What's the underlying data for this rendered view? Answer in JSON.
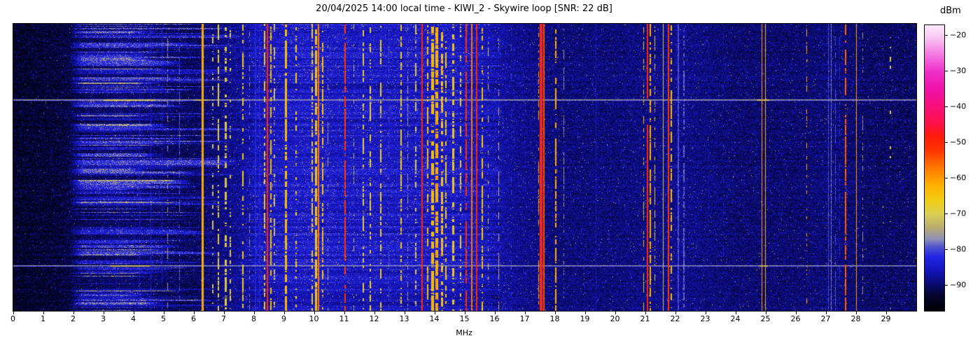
{
  "chart_data": {
    "type": "heatmap",
    "title": "20/04/2025 14:00 local time - KIWI_2 - Skywire loop [SNR: 22 dB]",
    "subtitle": "",
    "xlabel": "MHz",
    "ylabel": "",
    "y_meaning": "time (waterfall rows, unlabeled)",
    "x_range_mhz": [
      0,
      30
    ],
    "x_ticks": [
      0,
      1,
      2,
      3,
      4,
      5,
      6,
      7,
      8,
      9,
      10,
      11,
      12,
      13,
      14,
      15,
      16,
      17,
      18,
      19,
      20,
      21,
      22,
      23,
      24,
      25,
      26,
      27,
      28,
      29
    ],
    "grid": false,
    "legend": "none",
    "colorbar": {
      "label": "dBm",
      "ticks": [
        -20,
        -30,
        -40,
        -50,
        -60,
        -70,
        -80,
        -90
      ],
      "range_dbm": [
        -97,
        -17
      ],
      "position": "right",
      "colormap_stops": [
        [
          -97,
          "#000004"
        ],
        [
          -93,
          "#05052c"
        ],
        [
          -90,
          "#0a0a6a"
        ],
        [
          -86,
          "#1414b8"
        ],
        [
          -82,
          "#2323e6"
        ],
        [
          -79,
          "#5356cd"
        ],
        [
          -77,
          "#8f8fba"
        ],
        [
          -74,
          "#b7aa74"
        ],
        [
          -70,
          "#dccf55"
        ],
        [
          -66,
          "#f1ce12"
        ],
        [
          -62,
          "#ffb300"
        ],
        [
          -57,
          "#ff7a00"
        ],
        [
          -52,
          "#ff3400"
        ],
        [
          -48,
          "#ff1a0e"
        ],
        [
          -44,
          "#fc1150"
        ],
        [
          -40,
          "#f90f79"
        ],
        [
          -35,
          "#f112a9"
        ],
        [
          -30,
          "#ee2fca"
        ],
        [
          -25,
          "#f57be2"
        ],
        [
          -20,
          "#f9cdf3"
        ],
        [
          -17,
          "#fce9fb"
        ]
      ]
    },
    "noise_floor_profile_dbm": [
      [
        0,
        -96
      ],
      [
        1.5,
        -95
      ],
      [
        2.2,
        -93.5
      ],
      [
        3.5,
        -92
      ],
      [
        4.5,
        -92.5
      ],
      [
        6,
        -93
      ],
      [
        7.5,
        -90
      ],
      [
        8.2,
        -87.5
      ],
      [
        9.7,
        -86.5
      ],
      [
        11,
        -87
      ],
      [
        13,
        -87
      ],
      [
        14.5,
        -87
      ],
      [
        15.8,
        -88
      ],
      [
        16.5,
        -90
      ],
      [
        18,
        -91.5
      ],
      [
        20,
        -91.5
      ],
      [
        22,
        -90.5
      ],
      [
        24,
        -92
      ],
      [
        26,
        -92
      ],
      [
        27.3,
        -91.5
      ],
      [
        28.5,
        -92.5
      ],
      [
        30,
        -92.5
      ]
    ],
    "noise_texture": {
      "speckle_db": 7,
      "spike_prob": 0.018,
      "spike_db_max": 10,
      "row_mod_db_mid": 4.5,
      "row_mod_db_hi": 1.6
    },
    "left_haze": {
      "comment": "horizontal blue streak rows between 1.85 and ~7.7 MHz",
      "f_start": 1.85,
      "row_prob": 0.5,
      "amp_db_range": [
        3,
        11
      ],
      "cutoff_mhz_range": [
        4.3,
        7.8
      ],
      "tan_row_prob": 0.05,
      "tan_amp_db_range": [
        12,
        17
      ],
      "tan_cutoff_mhz_range": [
        4.6,
        6.2
      ],
      "persist_prob": 0.45
    },
    "row_streaks": [
      {
        "y_frac": 0.08,
        "level_dbm": -85,
        "f_range": [
          1.9,
          13.0
        ],
        "hot_segments": []
      },
      {
        "y_frac": 0.263,
        "level_dbm": -76,
        "f_range": [
          0,
          30
        ],
        "hot_segments": [
          [
            3.0,
            4.7,
            -69
          ],
          [
            6.0,
            6.5,
            -72
          ],
          [
            13.2,
            14.2,
            -73
          ],
          [
            24.7,
            25.1,
            -70
          ]
        ]
      },
      {
        "y_frac": 0.841,
        "level_dbm": -77,
        "f_range": [
          0,
          30
        ],
        "hot_segments": [
          [
            3.2,
            4.5,
            -71
          ],
          [
            24.8,
            25.05,
            -72
          ]
        ]
      }
    ],
    "signals": [
      {
        "freq": 4.2,
        "level": -85,
        "style": "solid",
        "width": 1
      },
      {
        "freq": 4.58,
        "level": -84,
        "style": "solid",
        "width": 1
      },
      {
        "freq": 4.95,
        "level": -84,
        "style": "dash",
        "cover": 0.7,
        "width": 1
      },
      {
        "freq": 5.12,
        "level": -76,
        "style": "dash",
        "cover": 0.3,
        "width": 1
      },
      {
        "freq": 5.53,
        "level": -79,
        "style": "dash",
        "cover": 0.5,
        "width": 1
      },
      {
        "freq": 6.3,
        "level": -59,
        "style": "solid",
        "width": 3
      },
      {
        "freq": 6.62,
        "level": -71,
        "style": "dash",
        "cover": 0.25,
        "width": 2
      },
      {
        "freq": 6.81,
        "level": -68,
        "style": "dash",
        "cover": 0.5,
        "width": 2
      },
      {
        "freq": 7.05,
        "level": -66,
        "style": "dash",
        "cover": 0.6,
        "width": 3
      },
      {
        "freq": 7.2,
        "level": -70,
        "style": "dash",
        "cover": 0.3,
        "width": 2
      },
      {
        "freq": 7.62,
        "level": -67,
        "style": "dash",
        "cover": 0.5,
        "width": 2
      },
      {
        "freq": 7.85,
        "level": -76,
        "style": "dash",
        "cover": 0.3,
        "width": 1
      },
      {
        "freq": 8.05,
        "level": -83,
        "style": "solid",
        "width": 2
      },
      {
        "freq": 8.18,
        "level": -84,
        "style": "solid",
        "width": 2
      },
      {
        "freq": 8.35,
        "level": -66,
        "style": "dash",
        "cover": 0.55,
        "width": 2
      },
      {
        "freq": 8.44,
        "level": -50,
        "style": "solid",
        "width": 2
      },
      {
        "freq": 8.55,
        "level": -63,
        "style": "dash",
        "cover": 0.7,
        "width": 2
      },
      {
        "freq": 8.67,
        "level": -72,
        "style": "dash",
        "cover": 0.3,
        "width": 2
      },
      {
        "freq": 9.06,
        "level": -61,
        "style": "dash",
        "cover": 0.75,
        "width": 3
      },
      {
        "freq": 9.4,
        "level": -67,
        "style": "dash",
        "cover": 0.35,
        "width": 2
      },
      {
        "freq": 9.93,
        "level": -67,
        "style": "dash",
        "cover": 0.5,
        "width": 2
      },
      {
        "freq": 10.05,
        "level": -63,
        "style": "dash",
        "cover": 0.8,
        "width": 3
      },
      {
        "freq": 10.15,
        "level": -57,
        "style": "solid",
        "width": 2
      },
      {
        "freq": 10.27,
        "level": -65,
        "style": "dash",
        "cover": 0.6,
        "width": 2
      },
      {
        "freq": 10.45,
        "level": -75,
        "style": "dash",
        "cover": 0.3,
        "width": 1
      },
      {
        "freq": 11.03,
        "level": -52,
        "style": "dash",
        "cover": 0.85,
        "width": 2
      },
      {
        "freq": 11.32,
        "level": -72,
        "style": "dash",
        "cover": 0.3,
        "width": 1
      },
      {
        "freq": 11.62,
        "level": -70,
        "style": "dash",
        "cover": 0.45,
        "width": 2
      },
      {
        "freq": 11.85,
        "level": -68,
        "style": "dash",
        "cover": 0.4,
        "width": 2
      },
      {
        "freq": 12.2,
        "level": -67,
        "style": "dash",
        "cover": 0.4,
        "width": 2
      },
      {
        "freq": 12.48,
        "level": -80,
        "style": "dash",
        "cover": 0.4,
        "width": 1
      },
      {
        "freq": 12.88,
        "level": -66,
        "style": "dash",
        "cover": 0.55,
        "width": 2
      },
      {
        "freq": 13.1,
        "level": -75,
        "style": "dash",
        "cover": 0.4,
        "width": 1
      },
      {
        "freq": 13.37,
        "level": -70,
        "style": "dash",
        "cover": 0.4,
        "width": 2
      },
      {
        "freq": 13.58,
        "level": -50,
        "style": "solid",
        "width": 2
      },
      {
        "freq": 13.76,
        "level": -64,
        "style": "dash",
        "cover": 0.6,
        "width": 2
      },
      {
        "freq": 13.92,
        "level": -62,
        "style": "dash",
        "cover": 0.7,
        "width": 4
      },
      {
        "freq": 14.08,
        "level": -61,
        "style": "dash",
        "cover": 0.75,
        "width": 4,
        "speck": true
      },
      {
        "freq": 14.24,
        "level": -63,
        "style": "dash",
        "cover": 0.6,
        "width": 3,
        "speck": true
      },
      {
        "freq": 14.38,
        "level": -66,
        "style": "dash",
        "cover": 0.5,
        "width": 2
      },
      {
        "freq": 14.62,
        "level": -64,
        "style": "dash",
        "cover": 0.55,
        "width": 3
      },
      {
        "freq": 14.86,
        "level": -68,
        "style": "dash",
        "cover": 0.4,
        "width": 2
      },
      {
        "freq": 15.05,
        "level": -51,
        "style": "dash",
        "cover": 0.85,
        "width": 2
      },
      {
        "freq": 15.23,
        "level": -57,
        "style": "solid",
        "width": 2
      },
      {
        "freq": 15.4,
        "level": -50,
        "style": "solid",
        "width": 2
      },
      {
        "freq": 15.57,
        "level": -64,
        "style": "dash",
        "cover": 0.55,
        "width": 2
      },
      {
        "freq": 15.78,
        "level": -70,
        "style": "dash",
        "cover": 0.3,
        "width": 1
      },
      {
        "freq": 16.12,
        "level": -73,
        "style": "dash",
        "cover": 0.35,
        "width": 1
      },
      {
        "freq": 16.55,
        "level": -81,
        "style": "dash",
        "cover": 0.25,
        "width": 1
      },
      {
        "freq": 17.45,
        "level": -62,
        "style": "dash",
        "cover": 0.5,
        "width": 1
      },
      {
        "freq": 17.53,
        "level": -47,
        "style": "solid",
        "width": 4
      },
      {
        "freq": 17.63,
        "level": -54,
        "style": "solid",
        "width": 2
      },
      {
        "freq": 18.03,
        "level": -62,
        "style": "dash",
        "cover": 0.7,
        "width": 2
      },
      {
        "freq": 18.28,
        "level": -76,
        "style": "dash",
        "cover": 0.3,
        "width": 1
      },
      {
        "freq": 19.35,
        "level": -86,
        "style": "solid",
        "width": 1
      },
      {
        "freq": 20.95,
        "level": -64,
        "style": "dash",
        "cover": 0.5,
        "width": 1
      },
      {
        "freq": 21.06,
        "level": -50,
        "style": "solid",
        "width": 2,
        "gap": [
          0.26,
          0.35
        ]
      },
      {
        "freq": 21.16,
        "level": -62,
        "style": "dash",
        "cover": 0.6,
        "width": 2
      },
      {
        "freq": 21.32,
        "level": -66,
        "style": "dash",
        "cover": 0.4,
        "width": 1
      },
      {
        "freq": 21.6,
        "level": -71,
        "style": "solid",
        "width": 1
      },
      {
        "freq": 21.76,
        "level": -52,
        "style": "solid",
        "width": 2
      },
      {
        "freq": 21.87,
        "level": -63,
        "style": "dash",
        "cover": 0.5,
        "width": 2
      },
      {
        "freq": 22.1,
        "level": -80,
        "style": "solid",
        "width": 2
      },
      {
        "freq": 22.27,
        "level": -79,
        "style": "dash",
        "cover": 0.6,
        "width": 2
      },
      {
        "freq": 23.1,
        "level": -84,
        "style": "dash",
        "cover": 0.2,
        "width": 1
      },
      {
        "freq": 23.6,
        "level": -84,
        "style": "dash",
        "cover": 0.2,
        "width": 1
      },
      {
        "freq": 24.88,
        "level": -60,
        "style": "solid",
        "width": 1
      },
      {
        "freq": 24.98,
        "level": -62,
        "style": "solid",
        "width": 1
      },
      {
        "freq": 26.37,
        "level": -61,
        "style": "dash",
        "cover": 0.3,
        "width": 1
      },
      {
        "freq": 27.08,
        "level": -80,
        "style": "solid",
        "width": 1
      },
      {
        "freq": 27.18,
        "level": -78,
        "style": "solid",
        "width": 1
      },
      {
        "freq": 27.32,
        "level": -80,
        "style": "dash",
        "cover": 0.6,
        "width": 1
      },
      {
        "freq": 27.45,
        "level": -82,
        "style": "dash",
        "cover": 0.5,
        "width": 1
      },
      {
        "freq": 27.66,
        "level": -55,
        "style": "dash",
        "cover": 0.8,
        "width": 2
      },
      {
        "freq": 28.02,
        "level": -60,
        "style": "solid",
        "width": 1
      },
      {
        "freq": 28.22,
        "level": -76,
        "style": "dash",
        "cover": 0.25,
        "width": 1
      },
      {
        "freq": 28.9,
        "level": -72,
        "style": "dash",
        "cover": 0.07,
        "width": 1
      },
      {
        "freq": 29.15,
        "level": -70,
        "style": "dash",
        "cover": 0.07,
        "width": 2
      }
    ]
  }
}
